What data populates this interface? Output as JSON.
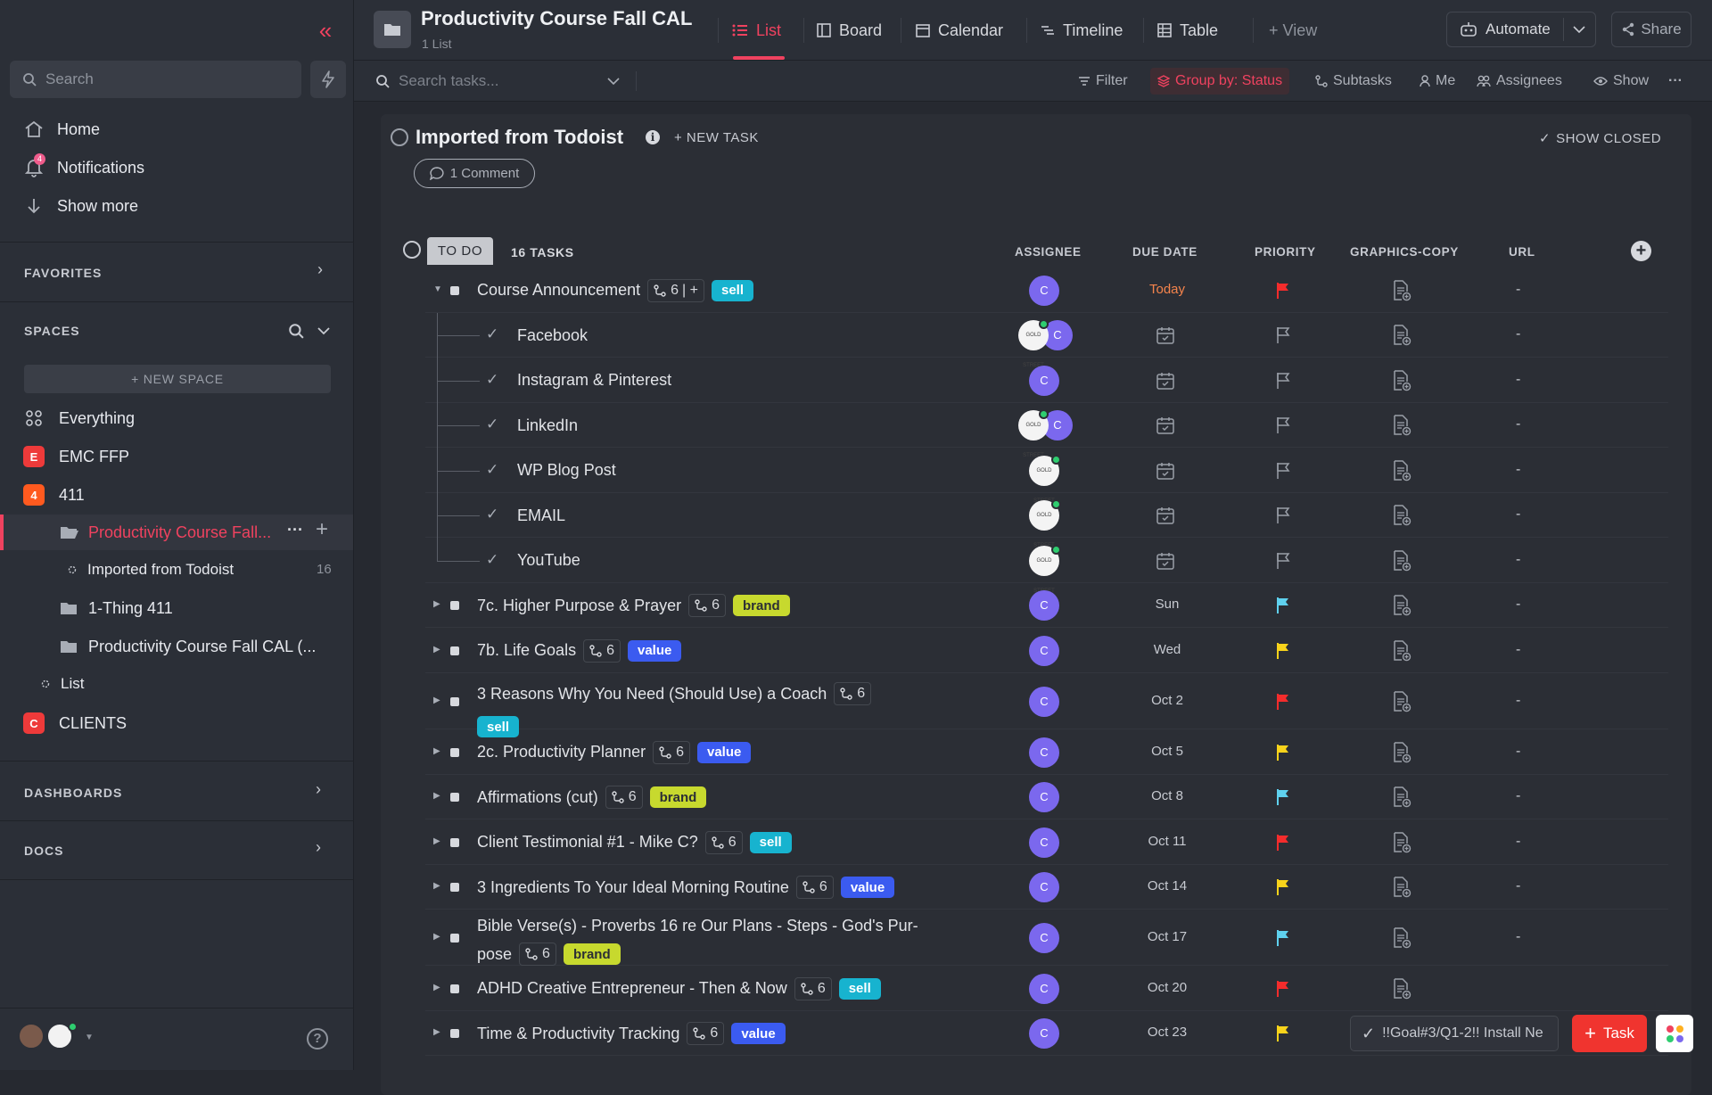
{
  "sidebar": {
    "search_placeholder": "Search",
    "nav": [
      {
        "label": "Home",
        "icon": "home-icon"
      },
      {
        "label": "Notifications",
        "icon": "bell-icon",
        "badge": "4"
      },
      {
        "label": "Show more",
        "icon": "arrow-down-icon"
      }
    ],
    "favorites_label": "FAVORITES",
    "spaces_label": "SPACES",
    "new_space_label": "+ NEW SPACE",
    "spaces": [
      {
        "label": "Everything",
        "badge": "",
        "color": "#2b2f37"
      },
      {
        "label": "EMC FFP",
        "badge": "E",
        "color": "#ee3a3a"
      },
      {
        "label": "411",
        "badge": "4",
        "color": "#ff5a1f"
      }
    ],
    "active_folder": "Productivity Course Fall...",
    "list_item": {
      "label": "Imported from Todoist",
      "count": "16"
    },
    "folders": [
      "1-Thing 411",
      "Productivity Course Fall CAL (..."
    ],
    "plain_list": "List",
    "clients": {
      "label": "CLIENTS",
      "badge": "C",
      "color": "#ee3a3a"
    },
    "dashboards_label": "DASHBOARDS",
    "docs_label": "DOCS"
  },
  "header": {
    "title": "Productivity Course Fall CAL",
    "subtitle": "1 List",
    "tabs": [
      {
        "label": "List",
        "icon": "list-icon",
        "active": true
      },
      {
        "label": "Board",
        "icon": "board-icon"
      },
      {
        "label": "Calendar",
        "icon": "calendar-icon"
      },
      {
        "label": "Timeline",
        "icon": "timeline-icon"
      },
      {
        "label": "Table",
        "icon": "table-icon"
      },
      {
        "label": "+ View",
        "icon": "plus-icon"
      }
    ],
    "automate_label": "Automate",
    "share_label": "Share"
  },
  "toolbar": {
    "search_placeholder": "Search tasks...",
    "filter": "Filter",
    "group_by": "Group by: Status",
    "subtasks": "Subtasks",
    "me": "Me",
    "assignees": "Assignees",
    "show": "Show",
    "more": "···"
  },
  "list": {
    "title": "Imported from Todoist",
    "new_task": "+ NEW TASK",
    "show_closed": "SHOW CLOSED",
    "comments": "1 Comment",
    "status": "TO DO",
    "task_count": "16 TASKS",
    "columns": [
      "ASSIGNEE",
      "DUE DATE",
      "PRIORITY",
      "GRAPHICS-COPY",
      "URL"
    ]
  },
  "tasks": [
    {
      "name": "Course Announcement",
      "subtasks": "6",
      "tag": "sell",
      "due": "Today",
      "priority": "urgent",
      "url": "-"
    },
    {
      "name": "Facebook",
      "sub": true,
      "priority": "none",
      "url": "-"
    },
    {
      "name": "Instagram & Pinterest",
      "sub": true,
      "priority": "none",
      "url": "-"
    },
    {
      "name": "LinkedIn",
      "sub": true,
      "priority": "none",
      "url": "-"
    },
    {
      "name": "WP Blog Post",
      "sub": true,
      "priority": "none",
      "url": "-"
    },
    {
      "name": "EMAIL",
      "sub": true,
      "priority": "none",
      "url": "-"
    },
    {
      "name": "YouTube",
      "sub": true,
      "priority": "none",
      "url": "-"
    },
    {
      "name": "7c. Higher Purpose & Prayer",
      "subtasks": "6",
      "tag": "brand",
      "due": "Sun",
      "priority": "normal",
      "url": "-"
    },
    {
      "name": "7b. Life Goals",
      "subtasks": "6",
      "tag": "value",
      "due": "Wed",
      "priority": "high",
      "url": "-"
    },
    {
      "name": "3 Reasons Why You Need (Should Use) a Coach",
      "subtasks": "6",
      "tag": "sell",
      "due": "Oct 2",
      "priority": "urgent",
      "url": "-"
    },
    {
      "name": "2c. Productivity Planner",
      "subtasks": "6",
      "tag": "value",
      "due": "Oct 5",
      "priority": "high",
      "url": "-"
    },
    {
      "name": "Affirmations (cut)",
      "subtasks": "6",
      "tag": "brand",
      "due": "Oct 8",
      "priority": "normal",
      "url": "-"
    },
    {
      "name": "Client Testimonial #1 - Mike C?",
      "subtasks": "6",
      "tag": "sell",
      "due": "Oct 11",
      "priority": "urgent",
      "url": "-"
    },
    {
      "name": "3 Ingredients To Your Ideal Morning Routine",
      "subtasks": "6",
      "tag": "value",
      "due": "Oct 14",
      "priority": "high",
      "url": "-"
    },
    {
      "name": "Bible Verse(s) - Proverbs 16 re Our Plans - Steps - God's Pur-",
      "name2": "pose",
      "subtasks": "6",
      "tag": "brand",
      "due": "Oct 17",
      "priority": "normal",
      "url": "-"
    },
    {
      "name": "ADHD Creative Entrepreneur - Then & Now",
      "subtasks": "6",
      "tag": "sell",
      "due": "Oct 20",
      "priority": "urgent",
      "url": ""
    },
    {
      "name": "Time & Productivity Tracking",
      "subtasks": "6",
      "tag": "value",
      "due": "Oct 23",
      "priority": "high",
      "url": ""
    }
  ],
  "assignee_initial": "C",
  "avatar_photo_text": "GOLD STREET",
  "floating": {
    "recent_task": "!!Goal#3/Q1-2!! Install Ne",
    "task_button": "Task"
  },
  "colors": {
    "accent": "#f0425f",
    "urgent": "#f42c2c",
    "high": "#f8d31b",
    "normal": "#5fd1ee",
    "sell": "#17b3cf",
    "brand": "#c7d92e",
    "value": "#3b5bf0"
  }
}
